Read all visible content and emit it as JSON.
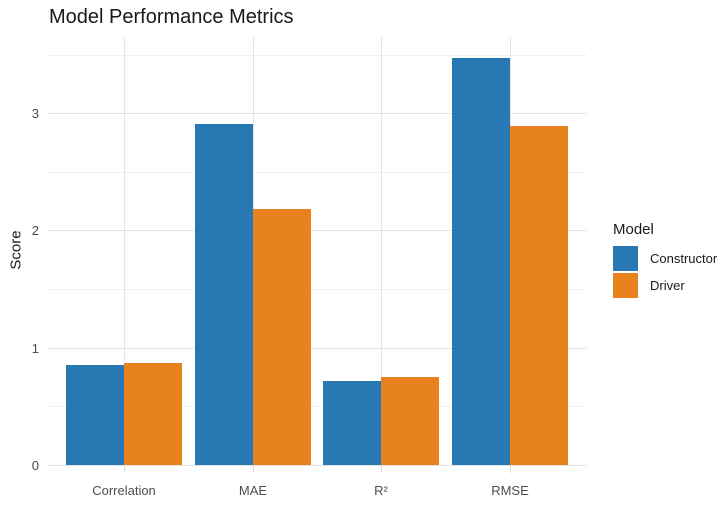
{
  "chart_data": {
    "type": "bar",
    "title": "Model Performance Metrics",
    "xlabel": "",
    "ylabel": "Score",
    "categories": [
      "Correlation",
      "MAE",
      "R²",
      "RMSE"
    ],
    "series": [
      {
        "name": "Constructor",
        "color": "#2878B4",
        "values": [
          0.85,
          2.91,
          0.72,
          3.47
        ]
      },
      {
        "name": "Driver",
        "color": "#E8821E",
        "values": [
          0.87,
          2.18,
          0.75,
          2.89
        ]
      }
    ],
    "ylim": [
      0,
      3.65
    ],
    "yticks": [
      0,
      1,
      2,
      3
    ],
    "yticks_minor": [
      0.5,
      1.5,
      2.5,
      3.5
    ],
    "grid": true,
    "legend_position": "right",
    "legend_title": "Model"
  }
}
